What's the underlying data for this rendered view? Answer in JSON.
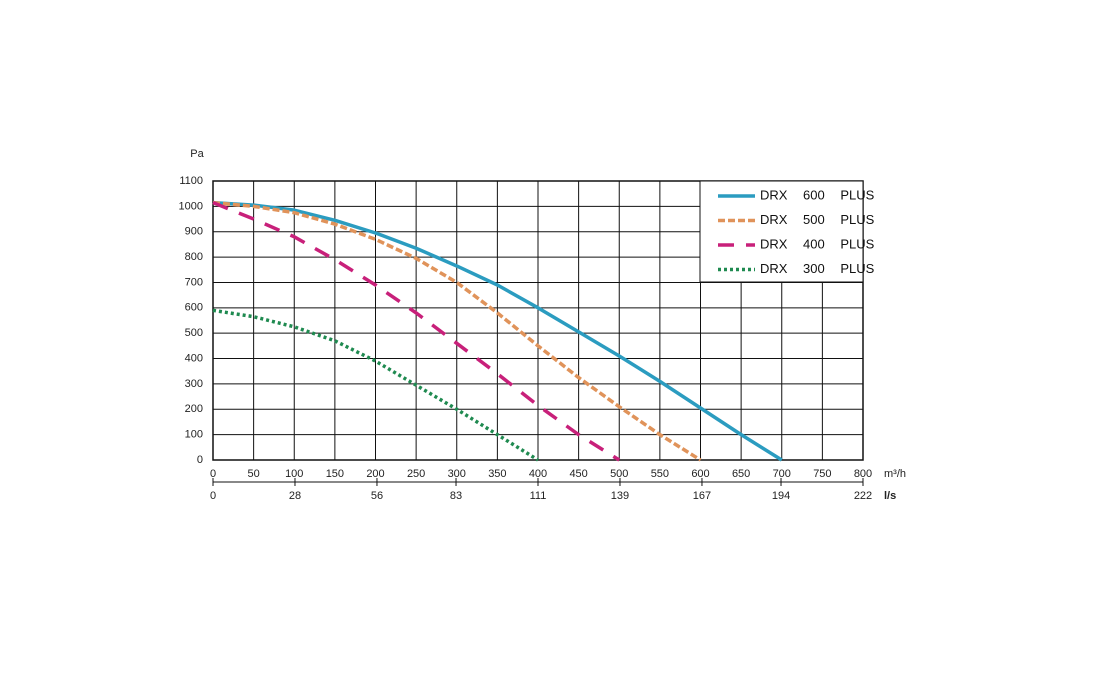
{
  "chart_data": {
    "type": "line",
    "y_label": "Pa",
    "x_label": "m³/h",
    "x2_label": "l/s",
    "xlim": [
      0,
      800
    ],
    "xticks": [
      0,
      50,
      100,
      150,
      200,
      250,
      300,
      350,
      400,
      450,
      500,
      550,
      600,
      650,
      700,
      750,
      800
    ],
    "ylim": [
      0,
      1100
    ],
    "yticks": [
      0,
      100,
      200,
      300,
      400,
      500,
      600,
      700,
      800,
      900,
      1000,
      1100
    ],
    "x2lim": [
      0,
      222
    ],
    "x2ticks": [
      0,
      28,
      56,
      83,
      111,
      139,
      167,
      194,
      222
    ],
    "grid": true,
    "legend": "top-right",
    "series": [
      {
        "name": "DRX 600 PLUS",
        "color": "#2b9cc0",
        "dash": "solid",
        "x": [
          0,
          50,
          100,
          150,
          200,
          250,
          300,
          350,
          400,
          450,
          500,
          550,
          600,
          650,
          700
        ],
        "values": [
          1015,
          1005,
          985,
          945,
          895,
          835,
          765,
          690,
          600,
          505,
          410,
          310,
          205,
          100,
          0
        ]
      },
      {
        "name": "DRX 500 PLUS",
        "color": "#e0935a",
        "dash": "dashed",
        "x": [
          0,
          50,
          100,
          150,
          200,
          250,
          300,
          350,
          400,
          450,
          500,
          550,
          600
        ],
        "values": [
          1015,
          1000,
          975,
          930,
          870,
          795,
          700,
          580,
          450,
          325,
          210,
          100,
          0
        ]
      },
      {
        "name": "DRX 400 PLUS",
        "color": "#c8207a",
        "dash": "longdash",
        "x": [
          0,
          50,
          100,
          150,
          200,
          250,
          300,
          350,
          400,
          450,
          500
        ],
        "values": [
          1015,
          950,
          880,
          790,
          690,
          580,
          460,
          340,
          215,
          100,
          0
        ]
      },
      {
        "name": "DRX 300 PLUS",
        "color": "#1f8a50",
        "dash": "dotted",
        "x": [
          0,
          50,
          100,
          150,
          200,
          250,
          300,
          350,
          400
        ],
        "values": [
          590,
          565,
          525,
          470,
          390,
          295,
          200,
          100,
          0
        ]
      }
    ]
  }
}
